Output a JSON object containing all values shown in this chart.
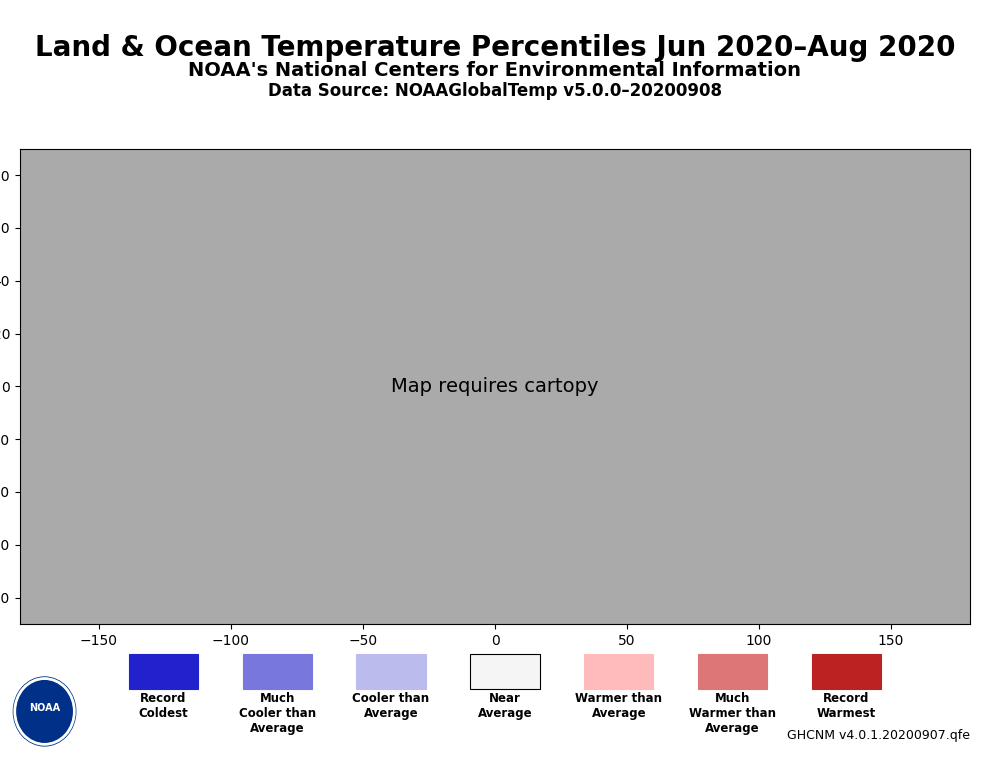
{
  "title": "Land & Ocean Temperature Percentiles Jun 2020–Aug 2020",
  "subtitle": "NOAA's National Centers for Environmental Information",
  "datasource": "Data Source: NOAAGlobalTemp v5.0.0–20200908",
  "footnote": "GHCNM v4.0.1.20200907.qfe",
  "background_color": "#ffffff",
  "map_background": "#aaaaaa",
  "legend_items": [
    {
      "label": "Record\nColdest",
      "color": "#2222cc"
    },
    {
      "label": "Much\nCooler than\nAverage",
      "color": "#7777dd"
    },
    {
      "label": "Cooler than\nAverage",
      "color": "#bbbbee"
    },
    {
      "label": "Near\nAverage",
      "color": "#f5f5f5"
    },
    {
      "label": "Warmer than\nAverage",
      "color": "#ffbbbb"
    },
    {
      "label": "Much\nWarmer than\nAverage",
      "color": "#dd7777"
    },
    {
      "label": "Record\nWarmest",
      "color": "#bb2222"
    }
  ],
  "title_fontsize": 20,
  "subtitle_fontsize": 14,
  "datasource_fontsize": 12,
  "footnote_fontsize": 9
}
